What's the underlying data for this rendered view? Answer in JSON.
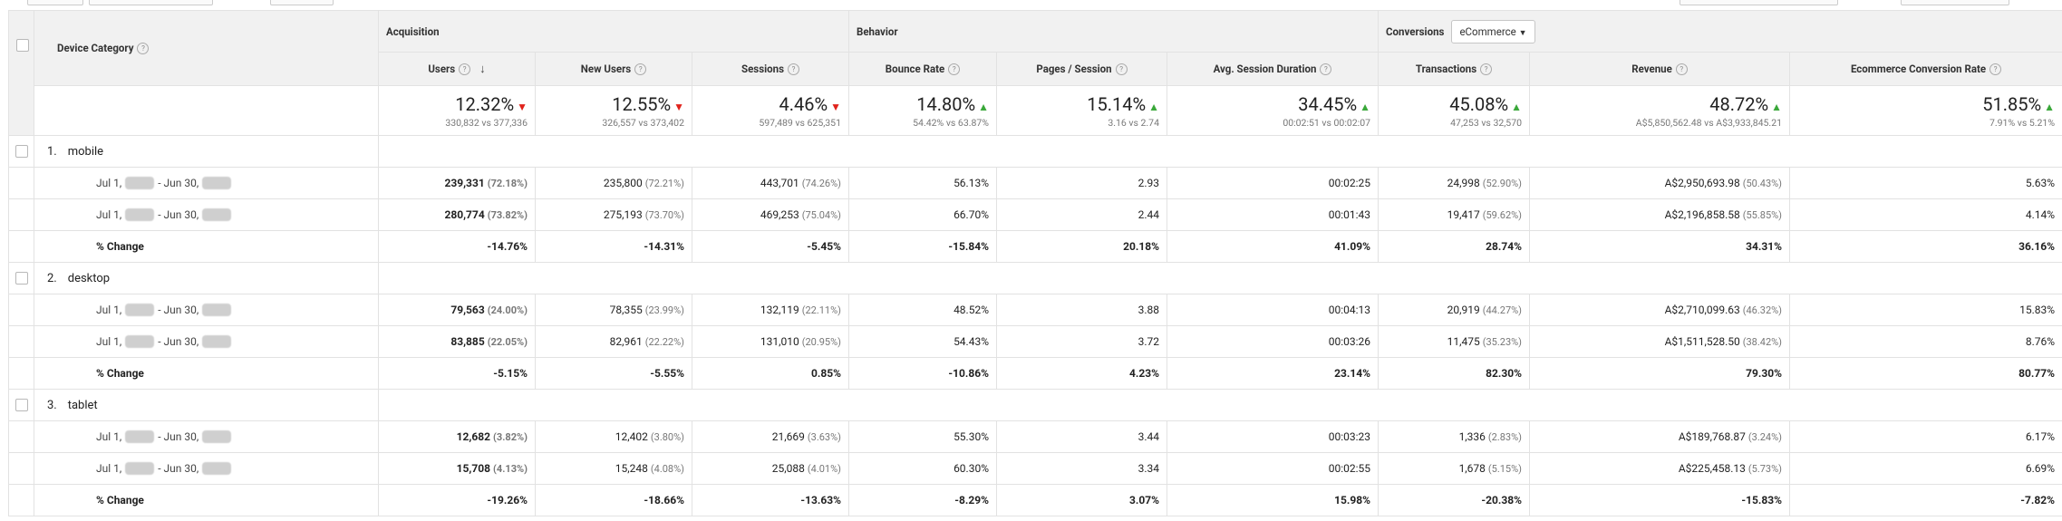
{
  "header": {
    "dimension": "Device Category",
    "groups": {
      "acquisition": "Acquisition",
      "behavior": "Behavior",
      "conversions": "Conversions"
    },
    "conversions_dropdown": "eCommerce",
    "metrics": [
      "Users",
      "New Users",
      "Sessions",
      "Bounce Rate",
      "Pages / Session",
      "Avg. Session Duration",
      "Transactions",
      "Revenue",
      "Ecommerce Conversion Rate"
    ]
  },
  "totals": [
    {
      "change": "12.32%",
      "dir": "down",
      "compare": "330,832 vs 377,336"
    },
    {
      "change": "12.55%",
      "dir": "down",
      "compare": "326,557 vs 373,402"
    },
    {
      "change": "4.46%",
      "dir": "down",
      "compare": "597,489 vs 625,351"
    },
    {
      "change": "14.80%",
      "dir": "up",
      "compare": "54.42% vs 63.87%"
    },
    {
      "change": "15.14%",
      "dir": "up",
      "compare": "3.16 vs 2.74"
    },
    {
      "change": "34.45%",
      "dir": "up",
      "compare": "00:02:51 vs 00:02:07"
    },
    {
      "change": "45.08%",
      "dir": "up",
      "compare": "47,253 vs 32,570"
    },
    {
      "change": "48.72%",
      "dir": "up",
      "compare": "A$5,850,562.48 vs A$3,933,845.21"
    },
    {
      "change": "51.85%",
      "dir": "up",
      "compare": "7.91% vs 5.21%"
    }
  ],
  "date_label": {
    "start": "Jul 1,",
    "sep": " - ",
    "end": "Jun 30,"
  },
  "change_label": "% Change",
  "groups": [
    {
      "index": "1.",
      "name": "mobile",
      "rows": [
        {
          "users": "239,331",
          "users_pct": "(72.18%)",
          "new_users": "235,800",
          "new_users_pct": "(72.21%)",
          "sessions": "443,701",
          "sessions_pct": "(74.26%)",
          "bounce": "56.13%",
          "pps": "2.93",
          "dur": "00:02:25",
          "trans": "24,998",
          "trans_pct": "(52.90%)",
          "rev": "A$2,950,693.98",
          "rev_pct": "(50.43%)",
          "ecr": "5.63%"
        },
        {
          "users": "280,774",
          "users_pct": "(73.82%)",
          "new_users": "275,193",
          "new_users_pct": "(73.70%)",
          "sessions": "469,253",
          "sessions_pct": "(75.04%)",
          "bounce": "66.70%",
          "pps": "2.44",
          "dur": "00:01:43",
          "trans": "19,417",
          "trans_pct": "(59.62%)",
          "rev": "A$2,196,858.58",
          "rev_pct": "(55.85%)",
          "ecr": "4.14%"
        }
      ],
      "change": [
        "-14.76%",
        "-14.31%",
        "-5.45%",
        "-15.84%",
        "20.18%",
        "41.09%",
        "28.74%",
        "34.31%",
        "36.16%"
      ]
    },
    {
      "index": "2.",
      "name": "desktop",
      "rows": [
        {
          "users": "79,563",
          "users_pct": "(24.00%)",
          "new_users": "78,355",
          "new_users_pct": "(23.99%)",
          "sessions": "132,119",
          "sessions_pct": "(22.11%)",
          "bounce": "48.52%",
          "pps": "3.88",
          "dur": "00:04:13",
          "trans": "20,919",
          "trans_pct": "(44.27%)",
          "rev": "A$2,710,099.63",
          "rev_pct": "(46.32%)",
          "ecr": "15.83%"
        },
        {
          "users": "83,885",
          "users_pct": "(22.05%)",
          "new_users": "82,961",
          "new_users_pct": "(22.22%)",
          "sessions": "131,010",
          "sessions_pct": "(20.95%)",
          "bounce": "54.43%",
          "pps": "3.72",
          "dur": "00:03:26",
          "trans": "11,475",
          "trans_pct": "(35.23%)",
          "rev": "A$1,511,528.50",
          "rev_pct": "(38.42%)",
          "ecr": "8.76%"
        }
      ],
      "change": [
        "-5.15%",
        "-5.55%",
        "0.85%",
        "-10.86%",
        "4.23%",
        "23.14%",
        "82.30%",
        "79.30%",
        "80.77%"
      ]
    },
    {
      "index": "3.",
      "name": "tablet",
      "rows": [
        {
          "users": "12,682",
          "users_pct": "(3.82%)",
          "new_users": "12,402",
          "new_users_pct": "(3.80%)",
          "sessions": "21,669",
          "sessions_pct": "(3.63%)",
          "bounce": "55.30%",
          "pps": "3.44",
          "dur": "00:03:23",
          "trans": "1,336",
          "trans_pct": "(2.83%)",
          "rev": "A$189,768.87",
          "rev_pct": "(3.24%)",
          "ecr": "6.17%"
        },
        {
          "users": "15,708",
          "users_pct": "(4.13%)",
          "new_users": "15,248",
          "new_users_pct": "(4.08%)",
          "sessions": "25,088",
          "sessions_pct": "(4.01%)",
          "bounce": "60.30%",
          "pps": "3.34",
          "dur": "00:02:55",
          "trans": "1,678",
          "trans_pct": "(5.15%)",
          "rev": "A$225,458.13",
          "rev_pct": "(5.73%)",
          "ecr": "6.69%"
        }
      ],
      "change": [
        "-19.26%",
        "-18.66%",
        "-13.63%",
        "-8.29%",
        "3.07%",
        "15.98%",
        "-20.38%",
        "-15.83%",
        "-7.82%"
      ]
    }
  ],
  "colors": {
    "header_bg": "#f1f1f1",
    "up_arrow": "#3aa83a",
    "down_arrow": "#e0221b",
    "border": "#e2e2e2"
  }
}
